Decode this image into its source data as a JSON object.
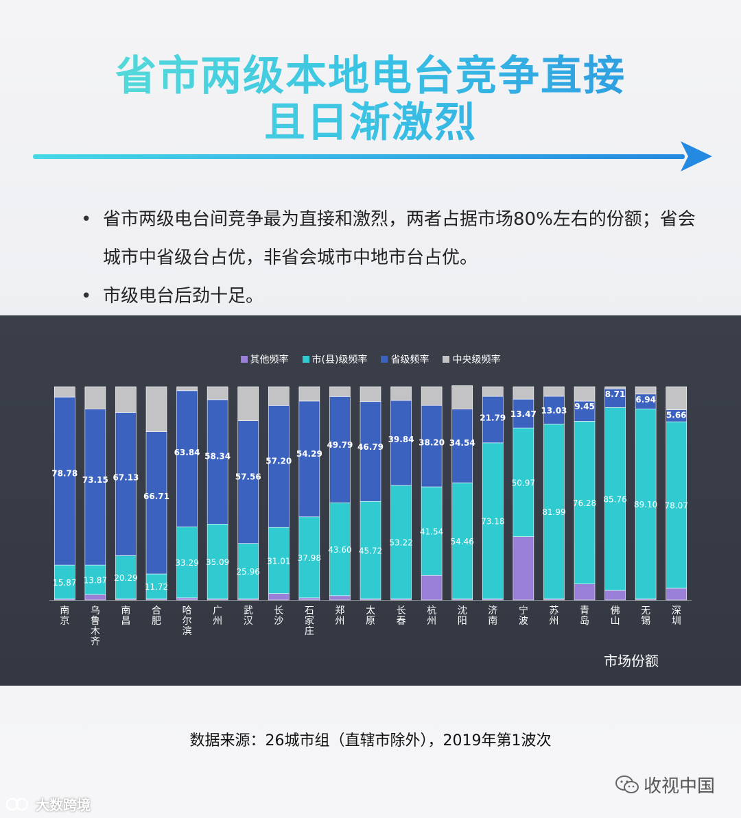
{
  "header": {
    "title_line1": "省市两级本地电台竞争直接",
    "title_line2": "且日渐激烈"
  },
  "bullets": [
    {
      "text": "省市两级电台间竞争最为直接和激烈，两者占据市场80%左右的份额；省会城市中省级台占优，非省会城市中地市台占优。"
    },
    {
      "text": "市级电台后劲十足。"
    }
  ],
  "bullet_glyph": "•",
  "colors": {
    "other": "#9a7fd8",
    "city": "#2fcbd0",
    "province": "#3c62c0",
    "central": "#c3c3c6",
    "panel": "#3a3f49"
  },
  "chart_data": {
    "type": "bar",
    "stacked": true,
    "percent": true,
    "categories": [
      "南京",
      "乌鲁木齐",
      "南昌",
      "合肥",
      "哈尔滨",
      "广州",
      "武汉",
      "长沙",
      "石家庄",
      "郑州",
      "太原",
      "长春",
      "杭州",
      "沈阳",
      "济南",
      "宁波",
      "苏州",
      "青岛",
      "佛山",
      "无锡",
      "深圳"
    ],
    "series": [
      {
        "name": "其他频率",
        "color_key": "other",
        "values": [
          0.5,
          2.5,
          0.5,
          0.5,
          1.0,
          0.5,
          0.5,
          3.0,
          1.0,
          2.0,
          0.5,
          0.5,
          11.5,
          0.5,
          0.5,
          29.7,
          0.5,
          7.5,
          4.5,
          0.5,
          5.5
        ]
      },
      {
        "name": "市(县)级频率",
        "color_key": "city",
        "values": [
          15.87,
          13.87,
          20.29,
          11.72,
          33.29,
          35.09,
          25.96,
          31.01,
          37.98,
          43.6,
          45.72,
          53.22,
          41.54,
          54.46,
          73.18,
          50.97,
          81.99,
          76.28,
          85.76,
          89.1,
          78.07
        ]
      },
      {
        "name": "省级频率",
        "color_key": "province",
        "values": [
          78.78,
          73.15,
          67.13,
          66.71,
          63.84,
          58.34,
          57.56,
          57.2,
          54.29,
          49.79,
          46.79,
          39.84,
          38.2,
          34.54,
          21.79,
          13.47,
          13.03,
          9.45,
          8.71,
          6.94,
          5.66
        ]
      },
      {
        "name": "中央级频率",
        "color_key": "central",
        "values": [
          4.85,
          10.48,
          12.08,
          21.07,
          1.87,
          6.07,
          15.98,
          8.79,
          6.73,
          4.61,
          6.99,
          6.44,
          8.76,
          11.0,
          4.53,
          5.86,
          4.48,
          6.77,
          1.03,
          3.46,
          10.77
        ]
      }
    ],
    "labels": {
      "city": [
        "15.87",
        "13.87",
        "20.29",
        "11.72",
        "33.29",
        "35.09",
        "25.96",
        "31.01",
        "37.98",
        "43.60",
        "45.72",
        "53.22",
        "41.54",
        "54.46",
        "73.18",
        "50.97",
        "81.99",
        "76.28",
        "85.76",
        "89.10",
        "78.07"
      ],
      "province": [
        "78.78",
        "73.15",
        "67.13",
        "66.71",
        "63.84",
        "58.34",
        "57.56",
        "57.20",
        "54.29",
        "49.79",
        "46.79",
        "39.84",
        "38.20",
        "34.54",
        "21.79",
        "13.47",
        "13.03",
        "9.45",
        "8.71",
        "6.94",
        "5.66"
      ]
    },
    "ylim": [
      0,
      100
    ],
    "xlabel": "市场份额",
    "legend_position": "top-center"
  },
  "footer": {
    "source": "数据来源：26城市组（直辖市除外），2019年第1波次",
    "watermark_right": "收视中国",
    "watermark_left": "大数跨境"
  }
}
